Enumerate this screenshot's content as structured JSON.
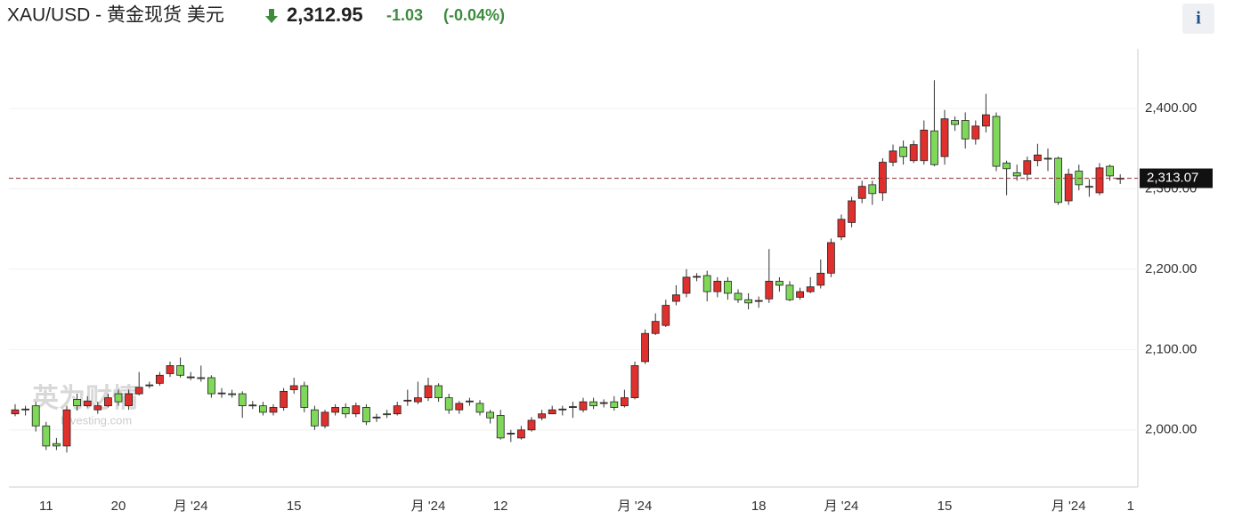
{
  "chart_data": {
    "type": "candlestick",
    "title": "XAU/USD - 黄金现货 美元",
    "price": "2,312.95",
    "change": "-1.03",
    "change_pct": "(-0.04%)",
    "info_button": "i",
    "watermark": "英为财情",
    "watermark_sub": "Investing.com",
    "up_color": "#e0302d",
    "down_color": "#7fd85a",
    "categories": [
      null,
      null,
      null,
      "11",
      null,
      null,
      null,
      null,
      null,
      null,
      "20",
      null,
      null,
      null,
      null,
      null,
      null,
      "月 '24",
      null,
      null,
      null,
      null,
      null,
      null,
      null,
      null,
      null,
      "15",
      null,
      null,
      null,
      null,
      null,
      null,
      null,
      null,
      null,
      null,
      null,
      null,
      "月 '24",
      null,
      null,
      null,
      null,
      null,
      null,
      "12",
      null,
      null,
      null,
      null,
      null,
      null,
      null,
      null,
      null,
      null,
      null,
      null,
      "月 '24",
      null,
      null,
      null,
      null,
      null,
      null,
      null,
      null,
      null,
      null,
      null,
      "18",
      null,
      null,
      null,
      null,
      null,
      null,
      null,
      "月 '24",
      null,
      null,
      null,
      null,
      null,
      null,
      null,
      null,
      null,
      "15",
      null,
      null,
      null,
      null,
      null,
      null,
      null,
      null,
      null,
      null,
      null,
      "月 '24",
      null,
      null,
      null,
      null,
      null,
      "1"
    ],
    "open": [
      2020,
      2025,
      2030,
      2005,
      1983,
      1980,
      2038,
      2030,
      2025,
      2030,
      2045,
      2030,
      2045,
      2055,
      2058,
      2070,
      2080,
      2065,
      2065,
      2065,
      2045,
      2045,
      2045,
      2030,
      2030,
      2022,
      2028,
      2050,
      2055,
      2025,
      2005,
      2022,
      2028,
      2020,
      2028,
      2015,
      2020,
      2020,
      2036,
      2035,
      2040,
      2055,
      2040,
      2025,
      2035,
      2033,
      2022,
      2018,
      1995,
      1990,
      2000,
      2015,
      2020,
      2025,
      2028,
      2025,
      2035,
      2033,
      2035,
      2030,
      2040,
      2085,
      2120,
      2130,
      2160,
      2170,
      2190,
      2192,
      2172,
      2185,
      2170,
      2162,
      2160,
      2163,
      2185,
      2180,
      2165,
      2172,
      2180,
      2195,
      2240,
      2258,
      2288,
      2305,
      2295,
      2333,
      2352,
      2335,
      2335,
      2372,
      2340,
      2385,
      2385,
      2362,
      2378,
      2390,
      2332,
      2320,
      2318,
      2335,
      2338,
      2338,
      2285,
      2322,
      2303,
      2295,
      2328,
      2313,
      null
    ],
    "high": [
      2032,
      2030,
      2035,
      2010,
      1990,
      2030,
      2045,
      2042,
      2035,
      2045,
      2050,
      2050,
      2072,
      2060,
      2072,
      2085,
      2090,
      2072,
      2080,
      2068,
      2052,
      2050,
      2048,
      2036,
      2035,
      2032,
      2052,
      2065,
      2060,
      2030,
      2025,
      2032,
      2033,
      2034,
      2032,
      2020,
      2025,
      2035,
      2050,
      2060,
      2065,
      2058,
      2045,
      2036,
      2040,
      2037,
      2025,
      2025,
      2000,
      2005,
      2016,
      2025,
      2030,
      2030,
      2035,
      2040,
      2040,
      2038,
      2042,
      2050,
      2085,
      2125,
      2145,
      2162,
      2180,
      2200,
      2195,
      2198,
      2190,
      2190,
      2175,
      2170,
      2166,
      2225,
      2190,
      2185,
      2177,
      2190,
      2212,
      2238,
      2268,
      2290,
      2310,
      2310,
      2338,
      2355,
      2360,
      2360,
      2385,
      2435,
      2398,
      2390,
      2395,
      2385,
      2418,
      2395,
      2335,
      2330,
      2340,
      2356,
      2350,
      2340,
      2325,
      2330,
      2312,
      2332,
      2330,
      2318,
      null
    ],
    "low": [
      2017,
      2018,
      1998,
      1975,
      1975,
      1972,
      2024,
      2028,
      2020,
      2028,
      2030,
      2025,
      2043,
      2052,
      2055,
      2066,
      2065,
      2062,
      2060,
      2040,
      2040,
      2040,
      2015,
      2026,
      2018,
      2018,
      2024,
      2045,
      2022,
      2000,
      2002,
      2018,
      2015,
      2016,
      2006,
      2010,
      2015,
      2018,
      2030,
      2032,
      2036,
      2035,
      2020,
      2020,
      2030,
      2018,
      2008,
      1988,
      1985,
      1988,
      1998,
      2012,
      2020,
      2018,
      2015,
      2022,
      2026,
      2028,
      2024,
      2028,
      2038,
      2082,
      2118,
      2128,
      2155,
      2165,
      2185,
      2160,
      2165,
      2162,
      2158,
      2150,
      2152,
      2158,
      2172,
      2160,
      2162,
      2170,
      2176,
      2190,
      2236,
      2252,
      2282,
      2280,
      2285,
      2328,
      2330,
      2332,
      2330,
      2328,
      2330,
      2372,
      2350,
      2355,
      2370,
      2322,
      2292,
      2310,
      2310,
      2328,
      2322,
      2280,
      2280,
      2298,
      2290,
      2292,
      2310,
      2306,
      null
    ],
    "close": [
      2025,
      2026,
      2005,
      1980,
      1980,
      2025,
      2030,
      2036,
      2030,
      2040,
      2035,
      2045,
      2053,
      2056,
      2068,
      2080,
      2068,
      2066,
      2064,
      2045,
      2046,
      2044,
      2030,
      2031,
      2022,
      2028,
      2048,
      2055,
      2028,
      2005,
      2022,
      2028,
      2020,
      2030,
      2010,
      2016,
      2019,
      2030,
      2037,
      2040,
      2055,
      2040,
      2025,
      2033,
      2036,
      2022,
      2015,
      1990,
      1996,
      2000,
      2012,
      2020,
      2025,
      2026,
      2029,
      2035,
      2030,
      2034,
      2028,
      2040,
      2080,
      2120,
      2135,
      2155,
      2168,
      2190,
      2191,
      2172,
      2185,
      2170,
      2162,
      2158,
      2161,
      2185,
      2180,
      2162,
      2172,
      2178,
      2195,
      2233,
      2262,
      2285,
      2303,
      2294,
      2333,
      2347,
      2340,
      2355,
      2373,
      2330,
      2387,
      2380,
      2362,
      2378,
      2392,
      2328,
      2325,
      2316,
      2335,
      2342,
      2337,
      2283,
      2318,
      2305,
      2302,
      2326,
      2316,
      2312,
      null
    ],
    "ylim": [
      1929,
      2474
    ],
    "yticks": [
      {
        "value": 2000,
        "label": "2,000.00"
      },
      {
        "value": 2100,
        "label": "2,100.00"
      },
      {
        "value": 2200,
        "label": "2,200.00"
      },
      {
        "value": 2300,
        "label": "2,300.00"
      },
      {
        "value": 2400,
        "label": "2,400.00"
      }
    ],
    "last_price": {
      "value": 2313.07,
      "label": "2,313.07"
    },
    "grid": true
  }
}
